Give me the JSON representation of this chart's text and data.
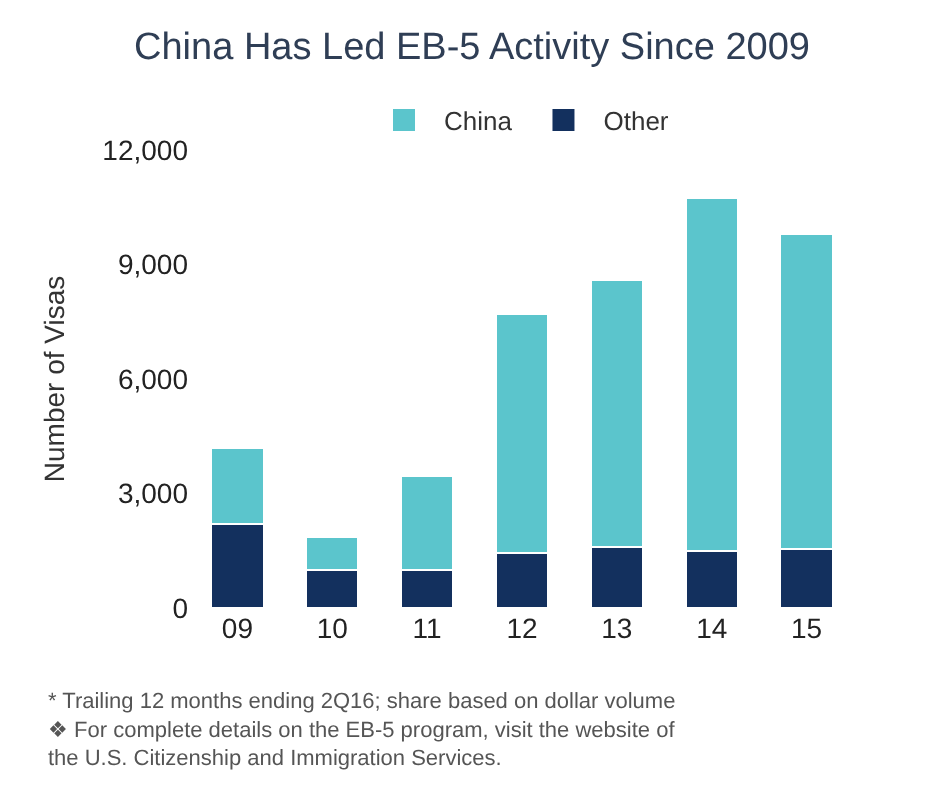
{
  "chart_data": {
    "type": "bar",
    "title": "China Has Led EB-5 Activity Since 2009",
    "categories": [
      "09",
      "10",
      "11",
      "12",
      "13",
      "14",
      "15"
    ],
    "stacked": true,
    "series": [
      {
        "name": "Other",
        "color": "#13305e",
        "values": [
          2200,
          1000,
          1000,
          1450,
          1600,
          1500,
          1550
        ]
      },
      {
        "name": "China",
        "color": "#5bc5cc",
        "values": [
          2000,
          850,
          2450,
          6250,
          7000,
          9250,
          8250
        ]
      }
    ],
    "ylabel": "Number of Visas",
    "ylim": [
      0,
      12000
    ],
    "yticks": [
      {
        "value": 0,
        "label": "0"
      },
      {
        "value": 3000,
        "label": "3,000"
      },
      {
        "value": 6000,
        "label": "6,000"
      },
      {
        "value": 9000,
        "label": "9,000"
      },
      {
        "value": 12000,
        "label": "12,000"
      }
    ],
    "legend": "top",
    "annotations": [
      "* Trailing 12 months ending 2Q16; share based on dollar volume",
      "❖ For complete details on the EB-5 program, visit the website of the U.S. Citizenship and Immigration Services."
    ]
  }
}
